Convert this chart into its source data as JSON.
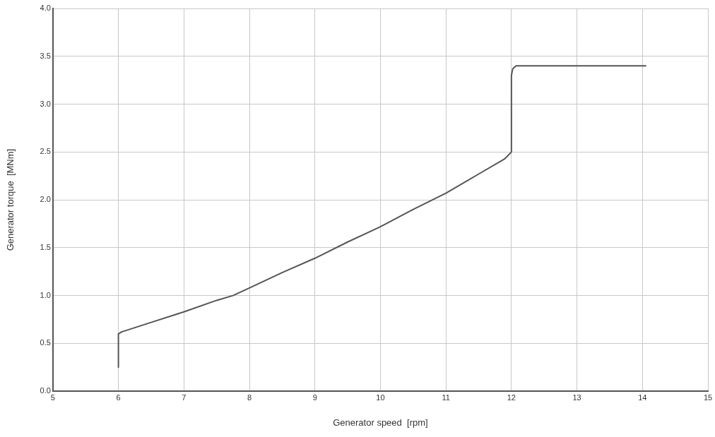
{
  "chart_data": {
    "type": "line",
    "xlabel": "Generator speed  [rpm]",
    "ylabel": "Generator torque  [MNm]",
    "series": [
      {
        "color": "#555555",
        "x": [
          6,
          6,
          6.05,
          6.5,
          7,
          7.5,
          7.75,
          8,
          8.5,
          9,
          9.5,
          10,
          10.5,
          11,
          11.5,
          11.9,
          12,
          12,
          12.02,
          12.07,
          14.05
        ],
        "values": [
          0.25,
          0.6,
          0.62,
          0.72,
          0.83,
          0.95,
          1.0,
          1.08,
          1.24,
          1.39,
          1.56,
          1.72,
          1.9,
          2.07,
          2.27,
          2.43,
          2.5,
          3.3,
          3.37,
          3.4,
          3.4
        ]
      }
    ],
    "xlim": [
      5,
      15
    ],
    "xticks": [
      5,
      6,
      7,
      8,
      9,
      10,
      11,
      12,
      13,
      14,
      15
    ],
    "ylim": [
      0,
      4
    ],
    "yticks": [
      {
        "value": 0,
        "label": "0.0"
      },
      {
        "value": 0.5,
        "label": "0.5"
      },
      {
        "value": 1,
        "label": "1.0"
      },
      {
        "value": 1.5,
        "label": "1.5"
      },
      {
        "value": 2,
        "label": "2.0"
      },
      {
        "value": 2.5,
        "label": "2.5"
      },
      {
        "value": 3,
        "label": "3.0"
      },
      {
        "value": 3.5,
        "label": "3.5"
      },
      {
        "value": 4,
        "label": "4.0"
      }
    ],
    "grid": true,
    "legend": false,
    "marker": "none",
    "line_style": "solid"
  }
}
